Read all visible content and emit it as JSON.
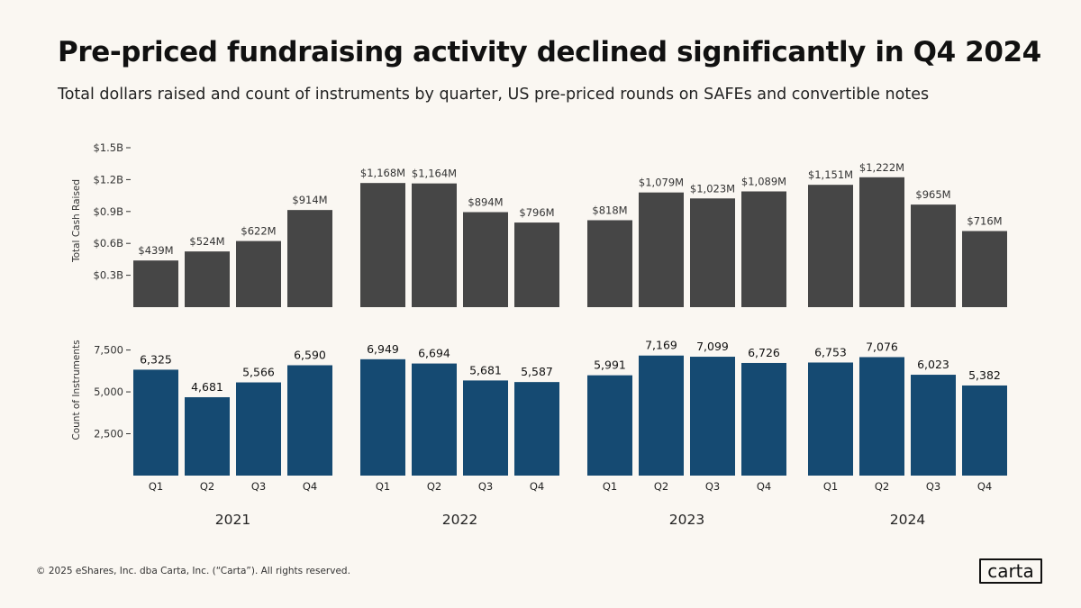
{
  "title": "Pre-priced fundraising activity declined significantly in Q4 2024",
  "subtitle": "Total dollars raised and count of instruments by quarter, US pre-priced rounds on SAFEs and convertible notes",
  "footer": "© 2025 eShares, Inc. dba Carta, Inc. (“Carta”). All rights reserved.",
  "logo": "carta",
  "colors": {
    "cash_bar": "#464646",
    "count_bar": "#154a72",
    "axis_text": "#333333"
  },
  "chart_data": [
    {
      "type": "bar",
      "title": "",
      "ylabel": "Total Cash Raised",
      "ylim": [
        0,
        1.5
      ],
      "yticks": [
        {
          "value": 0.3,
          "label": "$0.3B"
        },
        {
          "value": 0.6,
          "label": "$0.6B"
        },
        {
          "value": 0.9,
          "label": "$0.9B"
        },
        {
          "value": 1.2,
          "label": "$1.2B"
        },
        {
          "value": 1.5,
          "label": "$1.5B"
        }
      ],
      "groups": [
        "2021",
        "2022",
        "2023",
        "2024"
      ],
      "categories": [
        "Q1",
        "Q2",
        "Q3",
        "Q4"
      ],
      "values": [
        [
          0.439,
          0.524,
          0.622,
          0.914
        ],
        [
          1.168,
          1.164,
          0.894,
          0.796
        ],
        [
          0.818,
          1.079,
          1.023,
          1.089
        ],
        [
          1.151,
          1.222,
          0.965,
          0.716
        ]
      ],
      "labels": [
        [
          "$439M",
          "$524M",
          "$622M",
          "$914M"
        ],
        [
          "$1,168M",
          "$1,164M",
          "$894M",
          "$796M"
        ],
        [
          "$818M",
          "$1,079M",
          "$1,023M",
          "$1,089M"
        ],
        [
          "$1,151M",
          "$1,222M",
          "$965M",
          "$716M"
        ]
      ]
    },
    {
      "type": "bar",
      "title": "",
      "ylabel": "Count of Instruments",
      "ylim": [
        0,
        8500
      ],
      "yticks": [
        {
          "value": 2500,
          "label": "2,500"
        },
        {
          "value": 5000,
          "label": "5,000"
        },
        {
          "value": 7500,
          "label": "7,500"
        }
      ],
      "groups": [
        "2021",
        "2022",
        "2023",
        "2024"
      ],
      "categories": [
        "Q1",
        "Q2",
        "Q3",
        "Q4"
      ],
      "values": [
        [
          6325,
          4681,
          5566,
          6590
        ],
        [
          6949,
          6694,
          5681,
          5587
        ],
        [
          5991,
          7169,
          7099,
          6726
        ],
        [
          6753,
          7076,
          6023,
          5382
        ]
      ],
      "labels": [
        [
          "6,325",
          "4,681",
          "5,566",
          "6,590"
        ],
        [
          "6,949",
          "6,694",
          "5,681",
          "5,587"
        ],
        [
          "5,991",
          "7,169",
          "7,099",
          "6,726"
        ],
        [
          "6,753",
          "7,076",
          "6,023",
          "5,382"
        ]
      ]
    }
  ]
}
